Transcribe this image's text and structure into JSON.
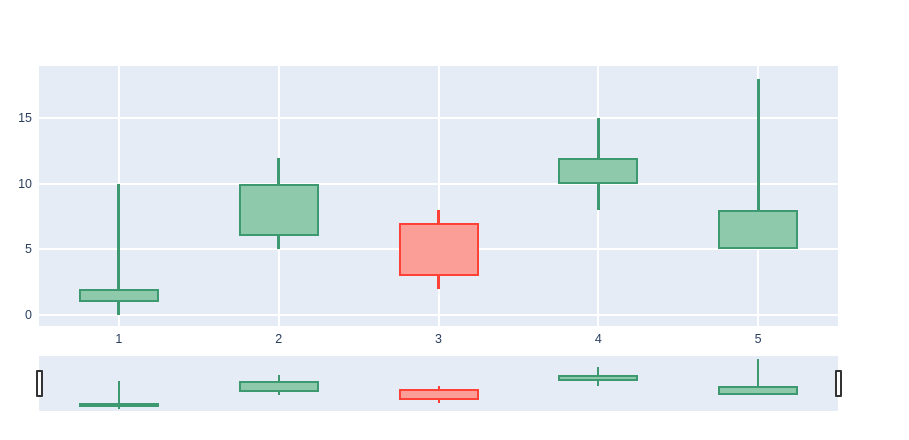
{
  "chart_data": {
    "type": "candlestick",
    "title": "",
    "xlabel": "",
    "ylabel": "",
    "x": [
      1,
      2,
      3,
      4,
      5
    ],
    "series": {
      "open": [
        1,
        6,
        7,
        10,
        5
      ],
      "high": [
        10,
        12,
        8,
        15,
        18
      ],
      "low": [
        0,
        5,
        2,
        8,
        5
      ],
      "close": [
        2,
        10,
        3,
        12,
        8
      ]
    },
    "directions": [
      "increasing",
      "increasing",
      "decreasing",
      "increasing",
      "increasing"
    ],
    "x_tick_labels": [
      "1",
      "2",
      "3",
      "4",
      "5"
    ],
    "x_tick_values": [
      1,
      2,
      3,
      4,
      5
    ],
    "y_tick_labels": [
      "0",
      "5",
      "10",
      "15"
    ],
    "y_tick_values": [
      0,
      5,
      10,
      15
    ],
    "x_range": [
      0.5,
      5.5
    ],
    "y_range": [
      -0.84,
      19.0
    ],
    "grid": true,
    "legend_position": "none",
    "rangeslider": true,
    "colors": {
      "increasing_line": "#3D9970",
      "increasing_fill": "#8FC9AC",
      "decreasing_line": "#FF4136",
      "decreasing_fill": "#FB9E97",
      "plot_background": "#E5ECF6",
      "grid_line": "#FFFFFF",
      "tick_label": "#2A3F5F",
      "page_background": "#FFFFFF",
      "handle_fill": "#FFFFFF",
      "handle_border": "#333333"
    }
  }
}
